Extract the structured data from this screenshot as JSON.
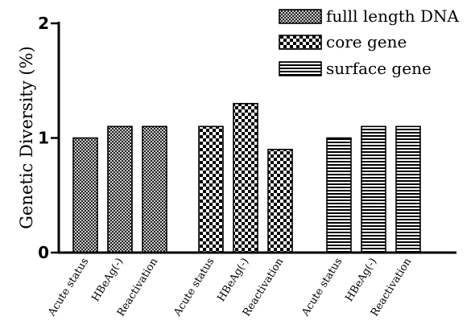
{
  "chart_data": {
    "type": "bar",
    "ylabel": "Genetic Diversity (%)",
    "xlabel": "",
    "ylim": [
      0,
      2
    ],
    "yticks": [
      0,
      1,
      2
    ],
    "grid": false,
    "legend_position": "top-right",
    "groups": [
      {
        "series": "fulll length DNA",
        "pattern": "crosshatch-fine",
        "categories": [
          "Acute status",
          "HBeAg(-)",
          "Reactivation"
        ],
        "values": [
          1.0,
          1.1,
          1.1
        ]
      },
      {
        "series": "core gene",
        "pattern": "checkerboard",
        "categories": [
          "Acute status",
          "HBeAg(-)",
          "Reactivation"
        ],
        "values": [
          1.1,
          1.3,
          0.9
        ]
      },
      {
        "series": "surface gene",
        "pattern": "horizontal-stripes",
        "categories": [
          "Acute status",
          "HBeAg(-)",
          "Reactivation"
        ],
        "values": [
          1.0,
          1.1,
          1.1
        ]
      }
    ],
    "legend": [
      "fulll length DNA",
      "core gene",
      "surface gene"
    ]
  }
}
